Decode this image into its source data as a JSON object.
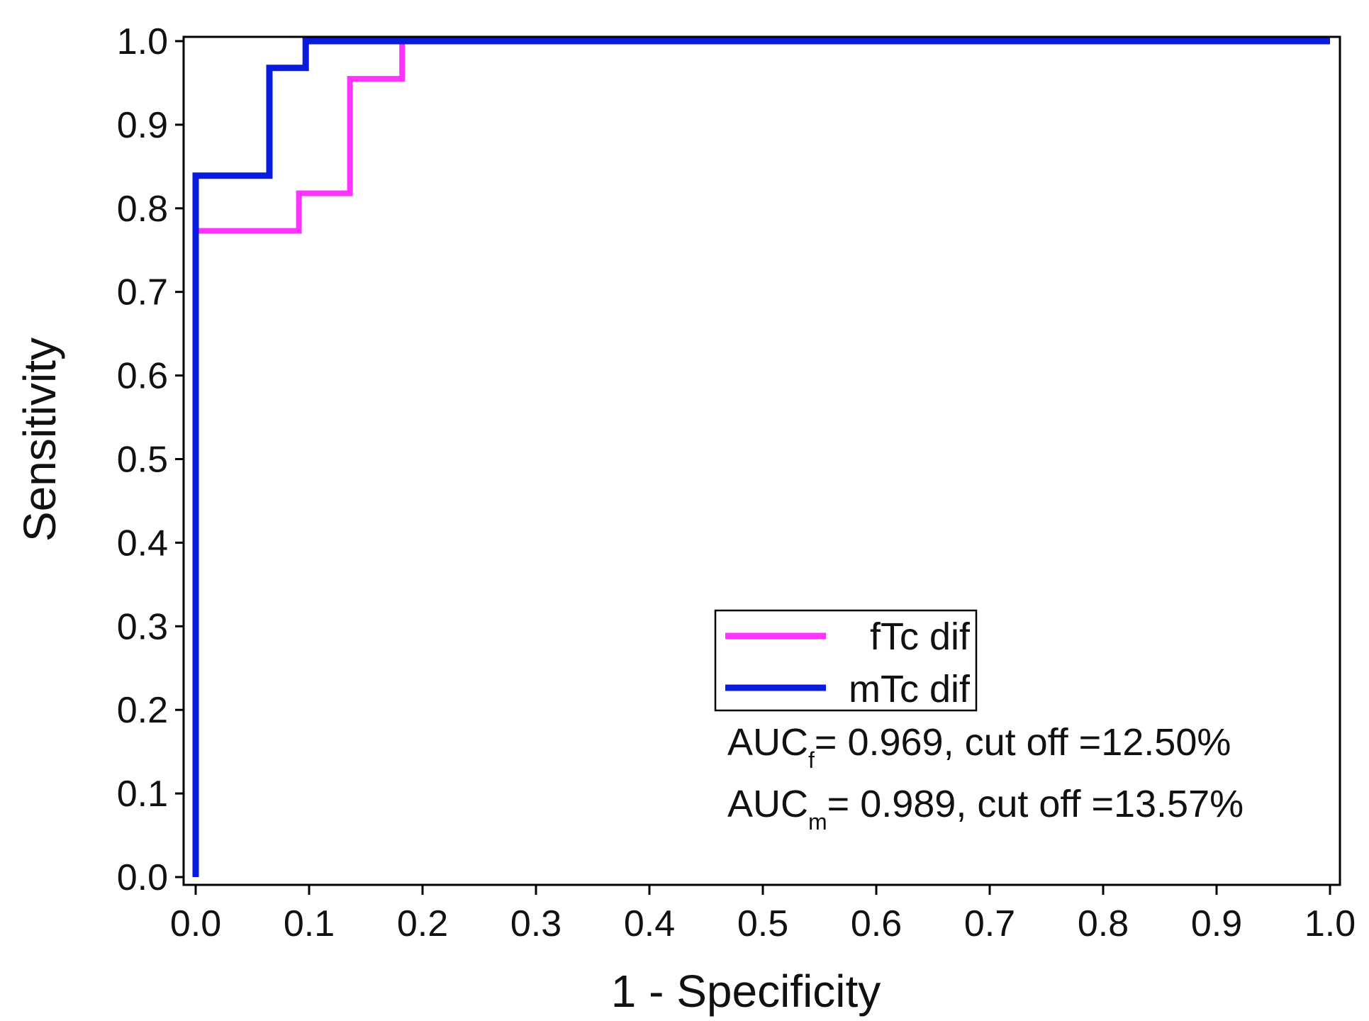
{
  "chart_data": {
    "type": "line",
    "title": "",
    "xlabel": "1 - Specificity",
    "ylabel": "Sensitivity",
    "xlim": [
      0.0,
      1.0
    ],
    "ylim": [
      0.0,
      1.0
    ],
    "grid": false,
    "xticks": [
      "0.0",
      "0.1",
      "0.2",
      "0.3",
      "0.4",
      "0.5",
      "0.6",
      "0.7",
      "0.8",
      "0.9",
      "1.0"
    ],
    "yticks": [
      "0.0",
      "0.1",
      "0.2",
      "0.3",
      "0.4",
      "0.5",
      "0.6",
      "0.7",
      "0.8",
      "0.9",
      "1.0"
    ],
    "legend_position": "lower-right",
    "series": [
      {
        "name": "fTc dif",
        "color": "#ff33ff",
        "x": [
          0.0,
          0.0,
          0.091,
          0.091,
          0.136,
          0.136,
          0.182,
          0.182,
          1.0
        ],
        "y": [
          0.0,
          0.773,
          0.773,
          0.818,
          0.818,
          0.955,
          0.955,
          1.0,
          1.0
        ]
      },
      {
        "name": "mTc dif",
        "color": "#0a1be0",
        "x": [
          0.0,
          0.0,
          0.065,
          0.065,
          0.097,
          0.097,
          1.0
        ],
        "y": [
          0.0,
          0.839,
          0.839,
          0.968,
          0.968,
          1.0,
          1.0
        ]
      }
    ],
    "annotations": [
      {
        "prefix": "AUC",
        "subscript": "f",
        "text": "= 0.969, cut off =12.50%"
      },
      {
        "prefix": "AUC",
        "subscript": "m",
        "text": "= 0.989, cut off =13.57%"
      }
    ]
  }
}
